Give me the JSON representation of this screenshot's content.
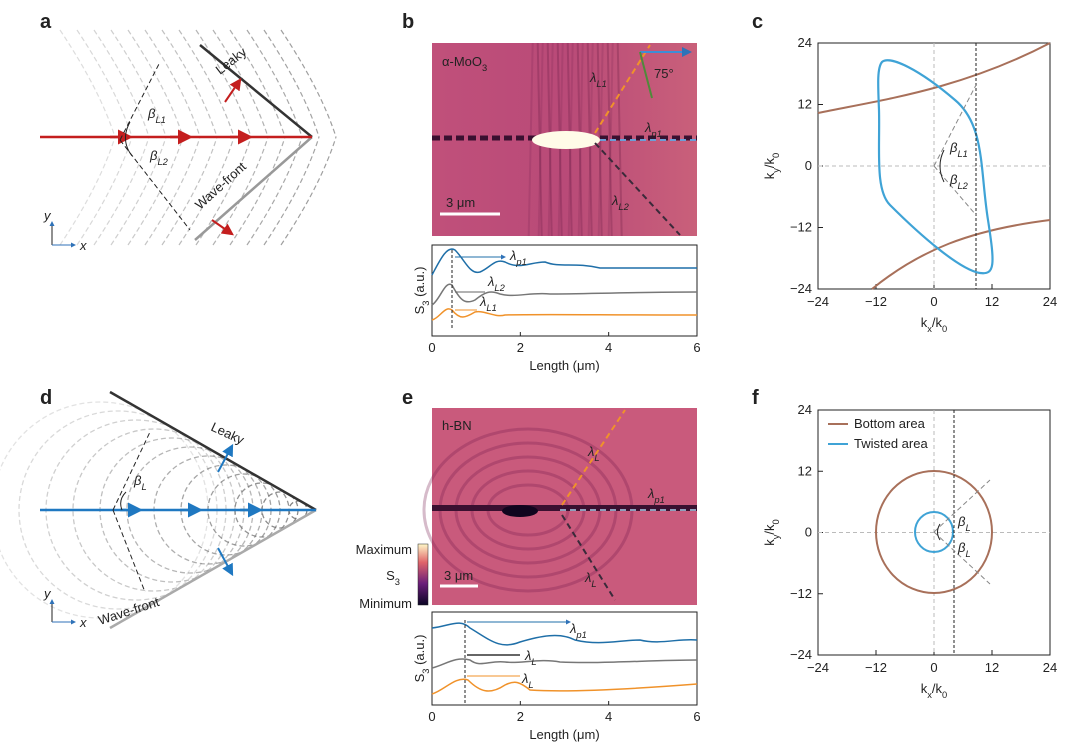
{
  "panel_a": {
    "label": "a",
    "leaky": "Leaky",
    "wavefront": "Wave-front",
    "beta1": [
      {
        "text": "β"
      },
      {
        "sub": "L1"
      }
    ],
    "beta2": [
      {
        "text": "β"
      },
      {
        "sub": "L2"
      }
    ],
    "axis_y": "y",
    "axis_x": "x"
  },
  "panel_b": {
    "label": "b",
    "material": [
      {
        "text": "α-MoO"
      },
      {
        "sub": "3"
      }
    ],
    "lambda_l1": [
      {
        "text": "λ"
      },
      {
        "sub": "L1"
      }
    ],
    "lambda_p1": [
      {
        "text": "λ"
      },
      {
        "sub": "p1"
      }
    ],
    "lambda_l2": [
      {
        "text": "λ"
      },
      {
        "sub": "L2"
      }
    ],
    "angle": "75°",
    "scale_bar": "3 μm",
    "profile": {
      "ylabel": [
        {
          "text": "S"
        },
        {
          "sub": "3"
        },
        {
          "text": " (a.u.)"
        }
      ],
      "xlabel": "Length (μm)",
      "xlim": [
        0,
        6
      ],
      "xticks": [
        0,
        2,
        4,
        6
      ],
      "lambda_p1": [
        {
          "text": "λ"
        },
        {
          "sub": "p1"
        }
      ],
      "lambda_l2": [
        {
          "text": "λ"
        },
        {
          "sub": "L2"
        }
      ],
      "lambda_l1": [
        {
          "text": "λ"
        },
        {
          "sub": "L1"
        }
      ]
    }
  },
  "panel_c": {
    "label": "c",
    "xlabel": [
      {
        "text": "k"
      },
      {
        "sub": "x"
      },
      {
        "text": "/k"
      },
      {
        "sub": "0"
      }
    ],
    "ylabel": [
      {
        "text": "k"
      },
      {
        "sub": "y"
      },
      {
        "text": "/k"
      },
      {
        "sub": "0"
      }
    ],
    "xlim": [
      -24,
      24
    ],
    "ylim": [
      -24,
      24
    ],
    "xticks": [
      {
        "value": -24,
        "label": "−24"
      },
      {
        "value": -12,
        "label": "−12"
      },
      0,
      12,
      24
    ],
    "yticks": [
      {
        "value": -24,
        "label": "−24"
      },
      {
        "value": -12,
        "label": "−12"
      },
      0,
      12,
      24
    ],
    "beta1": [
      {
        "text": "β"
      },
      {
        "sub": "L1"
      }
    ],
    "beta2": [
      {
        "text": "β"
      },
      {
        "sub": "L2"
      }
    ]
  },
  "panel_d": {
    "label": "d",
    "leaky": "Leaky",
    "wavefront": "Wave-front",
    "beta": [
      {
        "text": "β"
      },
      {
        "sub": "L"
      }
    ],
    "axis_y": "y",
    "axis_x": "x"
  },
  "panel_e": {
    "label": "e",
    "material": "h-BN",
    "lambda_l_top": [
      {
        "text": "λ"
      },
      {
        "sub": "L"
      }
    ],
    "lambda_p1": [
      {
        "text": "λ"
      },
      {
        "sub": "p1"
      }
    ],
    "lambda_l_bottom": [
      {
        "text": "λ"
      },
      {
        "sub": "L"
      }
    ],
    "colorbar": {
      "max": "Maximum",
      "name": [
        {
          "text": "S"
        },
        {
          "sub": "3"
        }
      ],
      "min": "Minimum"
    },
    "scale_bar": "3 μm",
    "profile": {
      "ylabel": [
        {
          "text": "S"
        },
        {
          "sub": "3"
        },
        {
          "text": " (a.u.)"
        }
      ],
      "xlabel": "Length (μm)",
      "xlim": [
        0,
        6
      ],
      "xticks": [
        0,
        2,
        4,
        6
      ],
      "lambda_p1": [
        {
          "text": "λ"
        },
        {
          "sub": "p1"
        }
      ],
      "lambda_l_mid": [
        {
          "text": "λ"
        },
        {
          "sub": "L"
        }
      ],
      "lambda_l_low": [
        {
          "text": "λ"
        },
        {
          "sub": "L"
        }
      ]
    }
  },
  "panel_f": {
    "label": "f",
    "xlabel": [
      {
        "text": "k"
      },
      {
        "sub": "x"
      },
      {
        "text": "/k"
      },
      {
        "sub": "0"
      }
    ],
    "ylabel": [
      {
        "text": "k"
      },
      {
        "sub": "y"
      },
      {
        "text": "/k"
      },
      {
        "sub": "0"
      }
    ],
    "xlim": [
      -24,
      24
    ],
    "ylim": [
      -24,
      24
    ],
    "xticks": [
      {
        "value": -24,
        "label": "−24"
      },
      {
        "value": -12,
        "label": "−12"
      },
      0,
      12,
      24
    ],
    "yticks": [
      {
        "value": -24,
        "label": "−24"
      },
      {
        "value": -12,
        "label": "−12"
      },
      0,
      12,
      24
    ],
    "legend": [
      {
        "name": "Bottom area",
        "color": "#a8705a"
      },
      {
        "name": "Twisted area",
        "color": "#3fa3d6"
      }
    ],
    "beta1": [
      {
        "text": "β"
      },
      {
        "sub": "L"
      }
    ],
    "beta2": [
      {
        "text": "β"
      },
      {
        "sub": "L"
      }
    ]
  }
}
